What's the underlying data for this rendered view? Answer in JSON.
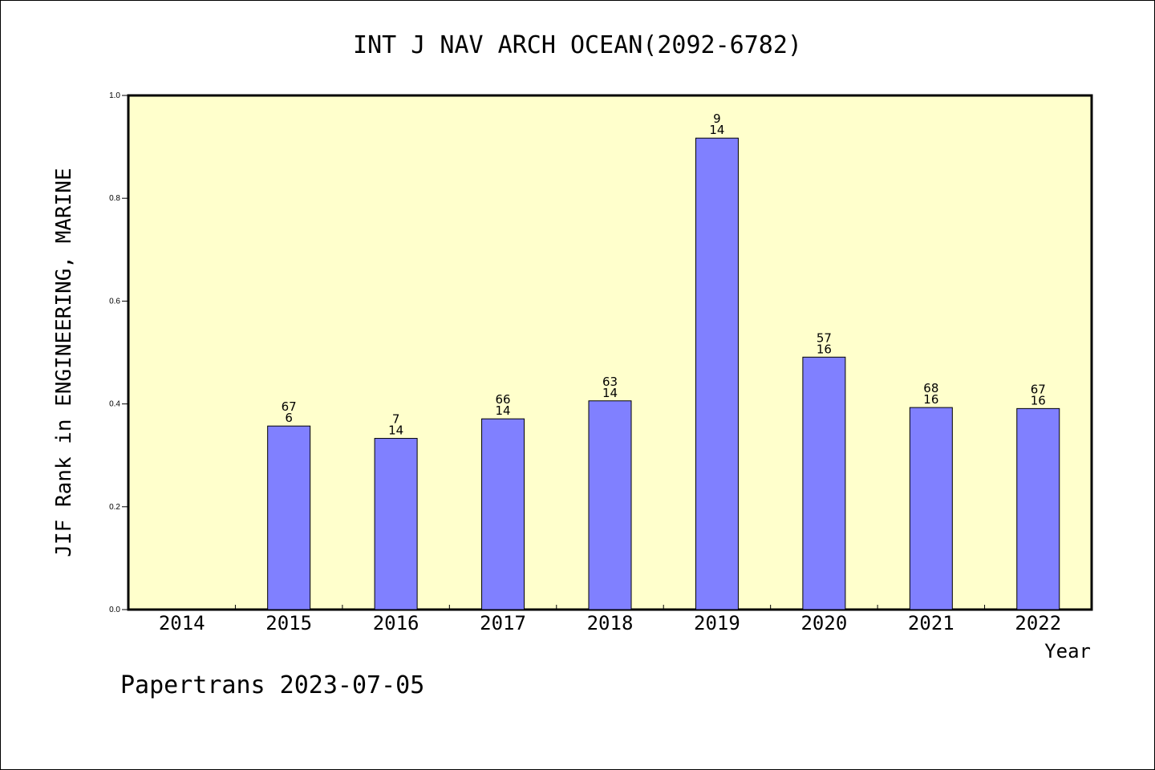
{
  "chart_data": {
    "type": "bar",
    "title": "INT J NAV ARCH OCEAN(2092-6782)",
    "xlabel": "Year",
    "ylabel": "JIF Rank in ENGINEERING, MARINE",
    "ylim": [
      0,
      1.0
    ],
    "yticks": [
      "0.0",
      "0.2",
      "0.4",
      "0.6",
      "0.8",
      "1.0"
    ],
    "ytick_values": [
      0.0,
      0.2,
      0.4,
      0.6,
      0.8,
      1.0
    ],
    "categories": [
      "2014",
      "2015",
      "2016",
      "2017",
      "2018",
      "2019",
      "2020",
      "2021",
      "2022"
    ],
    "values": [
      null,
      0.357,
      0.333,
      0.371,
      0.406,
      0.917,
      0.491,
      0.393,
      0.391
    ],
    "rank_labels": [
      null,
      "67",
      "7",
      "66",
      "63",
      "9",
      "57",
      "68",
      "67"
    ],
    "count_labels": [
      null,
      "6",
      "14",
      "14",
      "14",
      "14",
      "16",
      "16",
      "16"
    ],
    "plot_background": "#ffffcc",
    "bar_color": "#8080ff",
    "grid": false
  },
  "footer": {
    "text": "Papertrans 2023-07-05"
  }
}
